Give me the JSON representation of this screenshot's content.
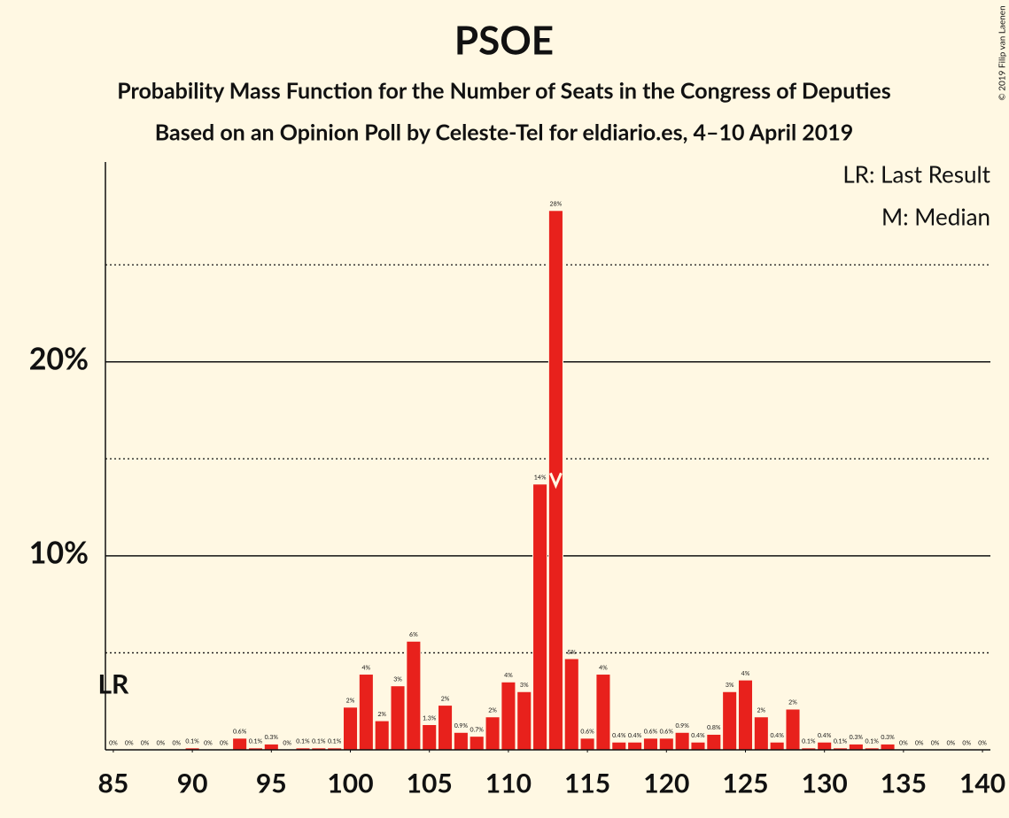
{
  "chart_data": {
    "type": "bar",
    "title": "PSOE",
    "subtitle": "Probability Mass Function for the Number of Seats in the Congress of Deputies",
    "subtitle2": "Based on an Opinion Poll by Celeste-Tel for eldiario.es, 4–10 April 2019",
    "copyright": "© 2019 Filip van Laenen",
    "legend": [
      "LR: Last Result",
      "M: Median"
    ],
    "last_result": 85,
    "last_result_label": "LR",
    "median": 113,
    "color": "#e8211c",
    "x": [
      85,
      86,
      87,
      88,
      89,
      90,
      91,
      92,
      93,
      94,
      95,
      96,
      97,
      98,
      99,
      100,
      101,
      102,
      103,
      104,
      105,
      106,
      107,
      108,
      109,
      110,
      111,
      112,
      113,
      114,
      115,
      116,
      117,
      118,
      119,
      120,
      121,
      122,
      123,
      124,
      125,
      126,
      127,
      128,
      129,
      130,
      131,
      132,
      133,
      134,
      135,
      136,
      137,
      138,
      139,
      140
    ],
    "values": [
      0.02,
      0.02,
      0.02,
      0.02,
      0.02,
      0.1,
      0.02,
      0.02,
      0.6,
      0.1,
      0.3,
      0.02,
      0.1,
      0.1,
      0.1,
      2.2,
      3.9,
      1.5,
      3.3,
      5.6,
      1.3,
      2.3,
      0.9,
      0.7,
      1.7,
      3.5,
      3.0,
      13.7,
      27.8,
      4.7,
      0.6,
      3.9,
      0.4,
      0.4,
      0.6,
      0.6,
      0.9,
      0.4,
      0.8,
      3.0,
      3.6,
      1.7,
      0.4,
      2.1,
      0.1,
      0.4,
      0.1,
      0.3,
      0.1,
      0.3,
      0.02,
      0.02,
      0.02,
      0.02,
      0.02,
      0.02
    ],
    "value_labels": [
      "0%",
      "0%",
      "0%",
      "0%",
      "0%",
      "0.1%",
      "0%",
      "0%",
      "0.6%",
      "0.1%",
      "0.3%",
      "0%",
      "0.1%",
      "0.1%",
      "0.1%",
      "2%",
      "4%",
      "2%",
      "3%",
      "6%",
      "1.3%",
      "2%",
      "0.9%",
      "0.7%",
      "2%",
      "4%",
      "3%",
      "14%",
      "28%",
      "5%",
      "0.6%",
      "4%",
      "0.4%",
      "0.4%",
      "0.6%",
      "0.6%",
      "0.9%",
      "0.4%",
      "0.8%",
      "3%",
      "4%",
      "2%",
      "0.4%",
      "2%",
      "0.1%",
      "0.4%",
      "0.1%",
      "0.3%",
      "0.1%",
      "0.3%",
      "0%",
      "0%",
      "0%",
      "0%",
      "0%",
      "0%"
    ],
    "xlim": [
      84.5,
      140.5
    ],
    "xticks": [
      85,
      90,
      95,
      100,
      105,
      110,
      115,
      120,
      125,
      130,
      135,
      140
    ],
    "ylim": [
      0,
      30.3
    ],
    "yticks": [
      {
        "value": 10,
        "label": "10%"
      },
      {
        "value": 20,
        "label": "20%"
      }
    ],
    "yminor": [
      5,
      15,
      25
    ],
    "grid": true
  }
}
